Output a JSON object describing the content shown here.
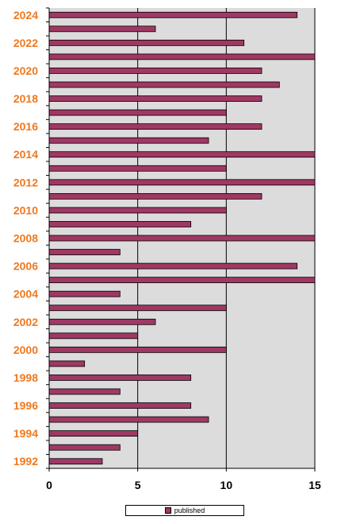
{
  "chart_data": {
    "type": "bar",
    "orientation": "horizontal",
    "categories": [
      "1992",
      "1993",
      "1994",
      "1995",
      "1996",
      "1997",
      "1998",
      "1999",
      "2000",
      "2001",
      "2002",
      "2003",
      "2004",
      "2005",
      "2006",
      "2007",
      "2008",
      "2009",
      "2010",
      "2011",
      "2012",
      "2013",
      "2014",
      "2015",
      "2016",
      "2017",
      "2018",
      "2019",
      "2020",
      "2021",
      "2022",
      "2023",
      "2024"
    ],
    "series": [
      {
        "name": "published",
        "values": [
          3,
          4,
          5,
          9,
          8,
          4,
          8,
          2,
          10,
          5,
          6,
          10,
          4,
          15,
          14,
          4,
          15,
          8,
          10,
          12,
          15,
          10,
          15,
          9,
          12,
          10,
          12,
          13,
          12,
          15,
          11,
          6,
          14
        ]
      }
    ],
    "xlim": [
      0,
      15
    ],
    "xticks": [
      0,
      5,
      10,
      15
    ],
    "ytick_labels_shown": [
      "1992",
      "1994",
      "1996",
      "1998",
      "2000",
      "2002",
      "2004",
      "2006",
      "2008",
      "2010",
      "2012",
      "2014",
      "2016",
      "2018",
      "2020",
      "2022",
      "2024"
    ],
    "grid": "vertical",
    "legend_position": "bottom",
    "colors": {
      "bar": "#a03864",
      "plot_background": "#dcdcdc",
      "year_labels": "#f0781e"
    }
  },
  "legend": {
    "label": "published"
  }
}
